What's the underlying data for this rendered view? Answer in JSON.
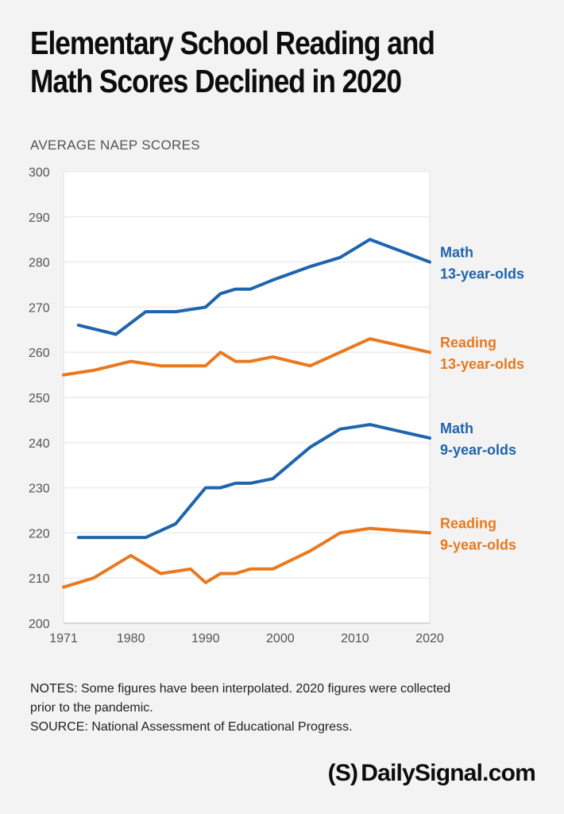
{
  "header": {
    "title_line1": "Elementary School Reading and",
    "title_line2": "Math Scores Declined in 2020",
    "subtitle": "AVERAGE NAEP SCORES"
  },
  "chart_data": {
    "type": "line",
    "ylim": [
      200,
      300
    ],
    "xlim": [
      1971,
      2020
    ],
    "yticks": [
      200,
      210,
      220,
      230,
      240,
      250,
      260,
      270,
      280,
      290,
      300
    ],
    "xticks": [
      1971,
      1980,
      1990,
      2000,
      2010,
      2020
    ],
    "grid": true,
    "series": [
      {
        "name": "Math 13-year-olds",
        "label_lines": [
          "Math",
          "13-year-olds"
        ],
        "color": "#1f65ad",
        "points": [
          [
            1973,
            266
          ],
          [
            1978,
            264
          ],
          [
            1982,
            269
          ],
          [
            1986,
            269
          ],
          [
            1990,
            270
          ],
          [
            1992,
            273
          ],
          [
            1994,
            274
          ],
          [
            1996,
            274
          ],
          [
            1999,
            276
          ],
          [
            2004,
            279
          ],
          [
            2008,
            281
          ],
          [
            2012,
            285
          ],
          [
            2020,
            280
          ]
        ]
      },
      {
        "name": "Reading 13-year-olds",
        "label_lines": [
          "Reading",
          "13-year-olds"
        ],
        "color": "#e9791f",
        "points": [
          [
            1971,
            255
          ],
          [
            1975,
            256
          ],
          [
            1980,
            258
          ],
          [
            1984,
            257
          ],
          [
            1988,
            257
          ],
          [
            1990,
            257
          ],
          [
            1992,
            260
          ],
          [
            1994,
            258
          ],
          [
            1996,
            258
          ],
          [
            1999,
            259
          ],
          [
            2004,
            257
          ],
          [
            2008,
            260
          ],
          [
            2012,
            263
          ],
          [
            2020,
            260
          ]
        ]
      },
      {
        "name": "Math 9-year-olds",
        "label_lines": [
          "Math",
          "9-year-olds"
        ],
        "color": "#1f65ad",
        "points": [
          [
            1973,
            219
          ],
          [
            1978,
            219
          ],
          [
            1982,
            219
          ],
          [
            1986,
            222
          ],
          [
            1990,
            230
          ],
          [
            1992,
            230
          ],
          [
            1994,
            231
          ],
          [
            1996,
            231
          ],
          [
            1999,
            232
          ],
          [
            2004,
            239
          ],
          [
            2008,
            243
          ],
          [
            2012,
            244
          ],
          [
            2020,
            241
          ]
        ]
      },
      {
        "name": "Reading 9-year-olds",
        "label_lines": [
          "Reading",
          "9-year-olds"
        ],
        "color": "#e9791f",
        "points": [
          [
            1971,
            208
          ],
          [
            1975,
            210
          ],
          [
            1980,
            215
          ],
          [
            1984,
            211
          ],
          [
            1988,
            212
          ],
          [
            1990,
            209
          ],
          [
            1992,
            211
          ],
          [
            1994,
            211
          ],
          [
            1996,
            212
          ],
          [
            1999,
            212
          ],
          [
            2004,
            216
          ],
          [
            2008,
            220
          ],
          [
            2012,
            221
          ],
          [
            2020,
            220
          ]
        ]
      }
    ]
  },
  "footer": {
    "notes_line1": "NOTES: Some figures have been interpolated. 2020 figures were collected",
    "notes_line2": "prior to the pandemic.",
    "source": "SOURCE: National Assessment of Educational Progress.",
    "brand_mark": "(S)",
    "brand_name": "DailySignal.com"
  }
}
